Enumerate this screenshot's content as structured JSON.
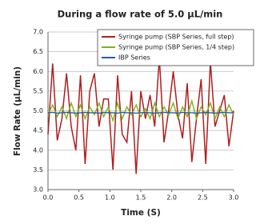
{
  "chart_data": {
    "type": "line",
    "title": "During a flow rate of 5.0 µL/min",
    "x_label": "Time (S)",
    "y_label": "Flow Rate (µL/min)",
    "x": [
      0,
      0.075,
      0.15,
      0.225,
      0.3,
      0.375,
      0.45,
      0.525,
      0.6,
      0.675,
      0.75,
      0.825,
      0.9,
      0.975,
      1.05,
      1.125,
      1.2,
      1.275,
      1.35,
      1.425,
      1.5,
      1.575,
      1.65,
      1.725,
      1.8,
      1.875,
      1.95,
      2.025,
      2.1,
      2.175,
      2.25,
      2.325,
      2.4,
      2.475,
      2.55,
      2.625,
      2.7,
      2.775,
      2.85,
      2.925,
      3.0
    ],
    "series": [
      {
        "name": "Syringe pump (SBP Series, full step)",
        "color": "#b01e1e",
        "values": [
          4.4,
          6.2,
          4.25,
          4.8,
          5.95,
          4.6,
          4.0,
          5.9,
          3.65,
          5.5,
          5.95,
          4.6,
          5.3,
          5.3,
          3.5,
          5.9,
          4.4,
          4.2,
          5.5,
          3.4,
          5.5,
          4.8,
          5.4,
          4.6,
          6.35,
          4.2,
          5.0,
          6.0,
          4.9,
          4.3,
          5.7,
          3.7,
          4.8,
          5.8,
          3.65,
          6.25,
          4.6,
          5.0,
          5.4,
          4.1,
          5.0
        ]
      },
      {
        "name": "Syringe pump (SBP Series, 1/4 step)",
        "color": "#7ab51d",
        "values": [
          4.9,
          5.15,
          4.85,
          5.1,
          4.8,
          5.2,
          4.85,
          5.15,
          4.8,
          5.1,
          4.9,
          5.2,
          4.85,
          5.1,
          4.75,
          5.2,
          4.8,
          5.1,
          4.9,
          5.15,
          4.85,
          5.05,
          4.8,
          5.2,
          4.85,
          5.1,
          4.9,
          5.2,
          4.8,
          5.1,
          4.85,
          5.25,
          4.8,
          5.1,
          4.9,
          5.2,
          4.8,
          5.1,
          4.85,
          5.15,
          4.9
        ]
      },
      {
        "name": "IBP Series",
        "color": "#2a5caa",
        "values": [
          4.95,
          4.96,
          4.94,
          4.95,
          4.96,
          4.95,
          4.94,
          4.95,
          4.96,
          4.95,
          4.95,
          4.94,
          4.96,
          4.95,
          4.95,
          4.94,
          4.96,
          4.95,
          4.95,
          4.94,
          4.95,
          4.96,
          4.95,
          4.94,
          4.95,
          4.96,
          4.95,
          4.95,
          4.94,
          4.96,
          4.95,
          4.95,
          4.94,
          4.95,
          4.96,
          4.95,
          4.94,
          4.95,
          4.96,
          4.95,
          4.95
        ]
      }
    ],
    "xlim": [
      0,
      3.0
    ],
    "xticks": [
      {
        "value": 0,
        "label": "0.0"
      },
      0.5,
      {
        "value": 1,
        "label": "1.0"
      },
      1.5,
      {
        "value": 2,
        "label": "2.0"
      },
      2.5,
      {
        "value": 3,
        "label": "3.0"
      }
    ],
    "ylim": [
      3,
      7
    ],
    "yticks": [
      {
        "value": 3,
        "label": "3.0"
      },
      3.5,
      {
        "value": 4,
        "label": "4.0"
      },
      4.5,
      {
        "value": 5,
        "label": "5.0"
      },
      5.5,
      {
        "value": 6,
        "label": "6.0"
      },
      6.5,
      {
        "value": 7,
        "label": "7.0"
      }
    ],
    "grid": true,
    "legend": "upper right"
  }
}
